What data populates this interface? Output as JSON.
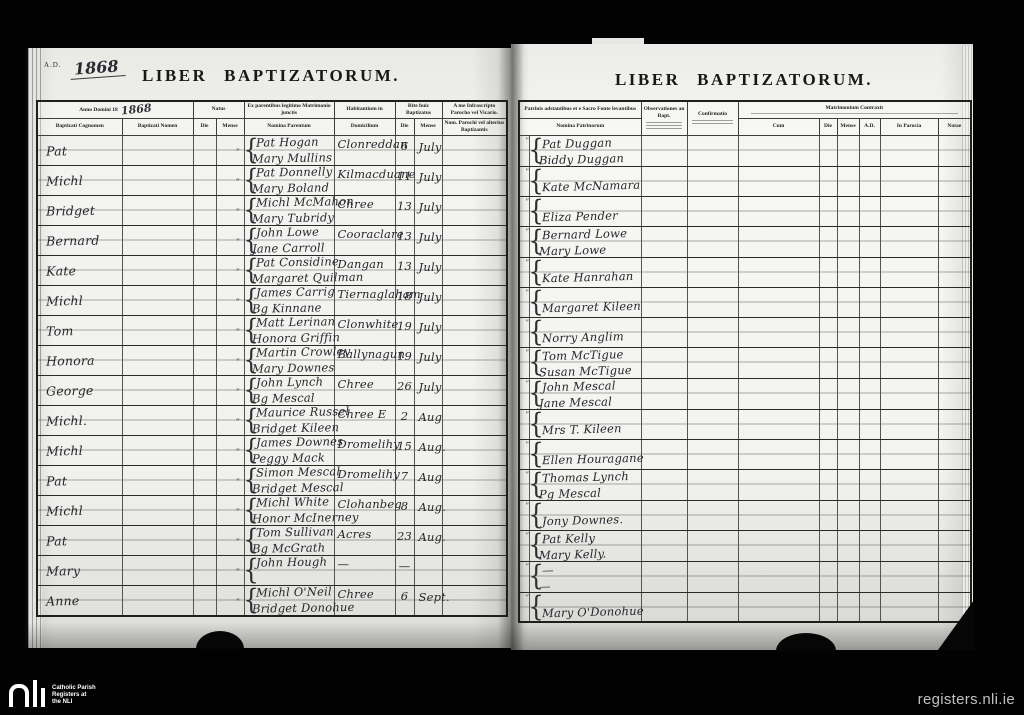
{
  "colors": {
    "paper": "#f3f3f0",
    "ink": "#26262e",
    "frame": "#000000",
    "watermark_text": "#c0c0c0"
  },
  "marks": {
    "brace": "{",
    "ditto": "\""
  },
  "left_page": {
    "year_annotation": {
      "prefix": "A.D.",
      "year": "1868"
    },
    "title": "LIBER BAPTIZATORUM.",
    "header": {
      "anno_domini_label": "Anno Domini 18",
      "anno_domini_written": "1868",
      "natus_label": "Natus",
      "parents_group_label": "Ex parentibus legitimo Matrimonio junctis",
      "residence_group_label": "Habitantium in",
      "baptized_group_label": "Rite huic Baptizatus",
      "priest_group_label": "A me Infrascripto Parocho vel Vicario.",
      "col_cognomen": "Baptizati Cognomen",
      "col_nomen": "Baptizati Nomen",
      "col_die": "Die",
      "col_mense": "Mense",
      "col_parents": "Nomina Parentum",
      "col_residence": "Domicilium",
      "col_die2": "Die",
      "col_mense2": "Mense",
      "col_priest": "Nom. Parochi vel alterius Baptizantis"
    },
    "rows": [
      {
        "name": "Pat",
        "parents": [
          "Pat Hogan",
          "Mary Mullins"
        ],
        "residence": "Clonreddan",
        "day": "6",
        "month": "July"
      },
      {
        "name": "Michl",
        "parents": [
          "Pat Donnelly",
          "Mary Boland"
        ],
        "residence": "Kilmacduane",
        "day": "11",
        "month": "July"
      },
      {
        "name": "Bridget",
        "parents": [
          "Michl McMahon",
          "Mary Tubridy"
        ],
        "residence": "Chree",
        "day": "13",
        "month": "July"
      },
      {
        "name": "Bernard",
        "parents": [
          "John Lowe",
          "Jane Carroll"
        ],
        "residence": "Cooraclare",
        "day": "13",
        "month": "July"
      },
      {
        "name": "Kate",
        "parents": [
          "Pat Considine",
          "Margaret Quilman"
        ],
        "residence": "Dangan",
        "day": "13",
        "month": "July"
      },
      {
        "name": "Michl",
        "parents": [
          "James Carrig",
          "Bg Kinnane"
        ],
        "residence": "Tiernaglaham",
        "day": "18",
        "month": "July"
      },
      {
        "name": "Tom",
        "parents": [
          "Matt Lerinan",
          "Honora Griffin"
        ],
        "residence": "Clonwhite",
        "day": "19",
        "month": "July"
      },
      {
        "name": "Honora",
        "parents": [
          "Martin Crowley",
          "Mary Downes"
        ],
        "residence": "Ballynagun",
        "day": "19",
        "month": "July"
      },
      {
        "name": "George",
        "parents": [
          "John Lynch",
          "Bg Mescal"
        ],
        "residence": "Chree",
        "day": "26",
        "month": "July"
      },
      {
        "name": "Michl.",
        "parents": [
          "Maurice Russel",
          "Bridget Kileen"
        ],
        "residence": "Chree E",
        "day": "2",
        "month": "Aug"
      },
      {
        "name": "Michl",
        "parents": [
          "James Downes",
          "Peggy Mack"
        ],
        "residence": "Dromelihy",
        "day": "15",
        "month": "Aug."
      },
      {
        "name": "Pat",
        "parents": [
          "Simon Mescal",
          "Bridget Mescal"
        ],
        "residence": "Dromelihy",
        "day": "7",
        "month": "Aug"
      },
      {
        "name": "Michl",
        "parents": [
          "Michl White",
          "Honor McInerney"
        ],
        "residence": "Clohanbeg",
        "day": "8",
        "month": "Aug."
      },
      {
        "name": "Pat",
        "parents": [
          "Tom Sullivan",
          "Bg McGrath"
        ],
        "residence": "Acres",
        "day": "23",
        "month": "Aug."
      },
      {
        "name": "Mary",
        "parents": [
          "John Hough",
          ""
        ],
        "residence": "—",
        "day": "—",
        "month": ""
      },
      {
        "name": "Anne",
        "parents": [
          "Michl O'Neil",
          "Bridget Donohue"
        ],
        "residence": "Chree",
        "day": "6",
        "month": "Sept."
      }
    ]
  },
  "right_page": {
    "title": "LIBER BAPTIZATORUM.",
    "header": {
      "sponsors_group_label": "Patrinis adstantibus et e Sacro Fonte levantibus",
      "col_sponsors": "Nomina Patrinorum",
      "observations_label": "Observationes an Bapt.",
      "confirmation_label": "Confirmatio",
      "marriage_group_label": "Matrimonium Contraxit",
      "col_cum": "Cum",
      "col_die": "Die",
      "col_mense": "Mense",
      "col_ad": "A.D.",
      "col_parish": "In Parocia",
      "col_notes": "Notae"
    },
    "rows": [
      {
        "sponsors": [
          "Pat Duggan",
          "Biddy Duggan"
        ]
      },
      {
        "sponsors": [
          "Kate McNamara"
        ]
      },
      {
        "sponsors": [
          "Eliza Pender"
        ]
      },
      {
        "sponsors": [
          "Bernard Lowe",
          "Mary Lowe"
        ]
      },
      {
        "sponsors": [
          "Kate Hanrahan"
        ]
      },
      {
        "sponsors": [
          "Margaret Kileen"
        ]
      },
      {
        "sponsors": [
          "Norry Anglim"
        ]
      },
      {
        "sponsors": [
          "Tom McTigue",
          "Susan McTigue"
        ]
      },
      {
        "sponsors": [
          "John Mescal",
          "Jane Mescal"
        ]
      },
      {
        "sponsors": [
          "Mrs T. Kileen"
        ]
      },
      {
        "sponsors": [
          "Ellen Houragane"
        ]
      },
      {
        "sponsors": [
          "Thomas Lynch",
          "Pg Mescal"
        ]
      },
      {
        "sponsors": [
          "Jony Downes."
        ]
      },
      {
        "sponsors": [
          "Pat Kelly",
          "Mary Kelly."
        ]
      },
      {
        "sponsors": [
          "—",
          "—"
        ]
      },
      {
        "sponsors": [
          "Mary O'Donohue"
        ]
      }
    ]
  },
  "footer": {
    "watermark": "registers.nli.ie",
    "logo_caption": [
      "Catholic Parish",
      "Registers at",
      "the NLI"
    ]
  }
}
